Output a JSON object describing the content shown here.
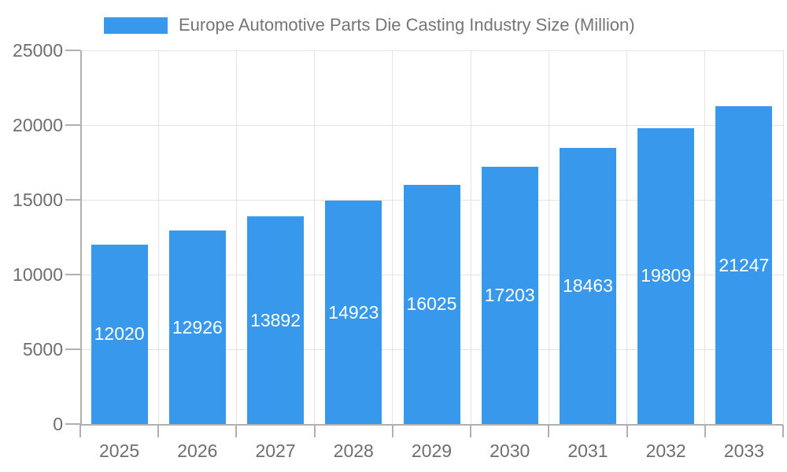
{
  "chart_data": {
    "type": "bar",
    "title": "Europe Automotive Parts Die Casting Industry Size (Million)",
    "categories": [
      "2025",
      "2026",
      "2027",
      "2028",
      "2029",
      "2030",
      "2031",
      "2032",
      "2033"
    ],
    "values": [
      12020,
      12926,
      13892,
      14923,
      16025,
      17203,
      18463,
      19809,
      21247
    ],
    "series": [
      {
        "name": "Europe Automotive Parts Die Casting Industry Size (Million)",
        "values": [
          12020,
          12926,
          13892,
          14923,
          16025,
          17203,
          18463,
          19809,
          21247
        ]
      }
    ],
    "xlabel": "",
    "ylabel": "",
    "ylim": [
      0,
      25000
    ],
    "yticks": [
      0,
      5000,
      10000,
      15000,
      20000,
      25000
    ],
    "grid": true,
    "bar_labels_inside": true,
    "legend_position": "top-center",
    "colors": {
      "bar": "#3898EC",
      "grid": "#E3E3E3",
      "axis": "#B0B0B0",
      "tick_text": "#6E6E6E",
      "title_text": "#757575",
      "bar_label_text": "#FFFFFF",
      "background": "#FFFFFF"
    }
  }
}
